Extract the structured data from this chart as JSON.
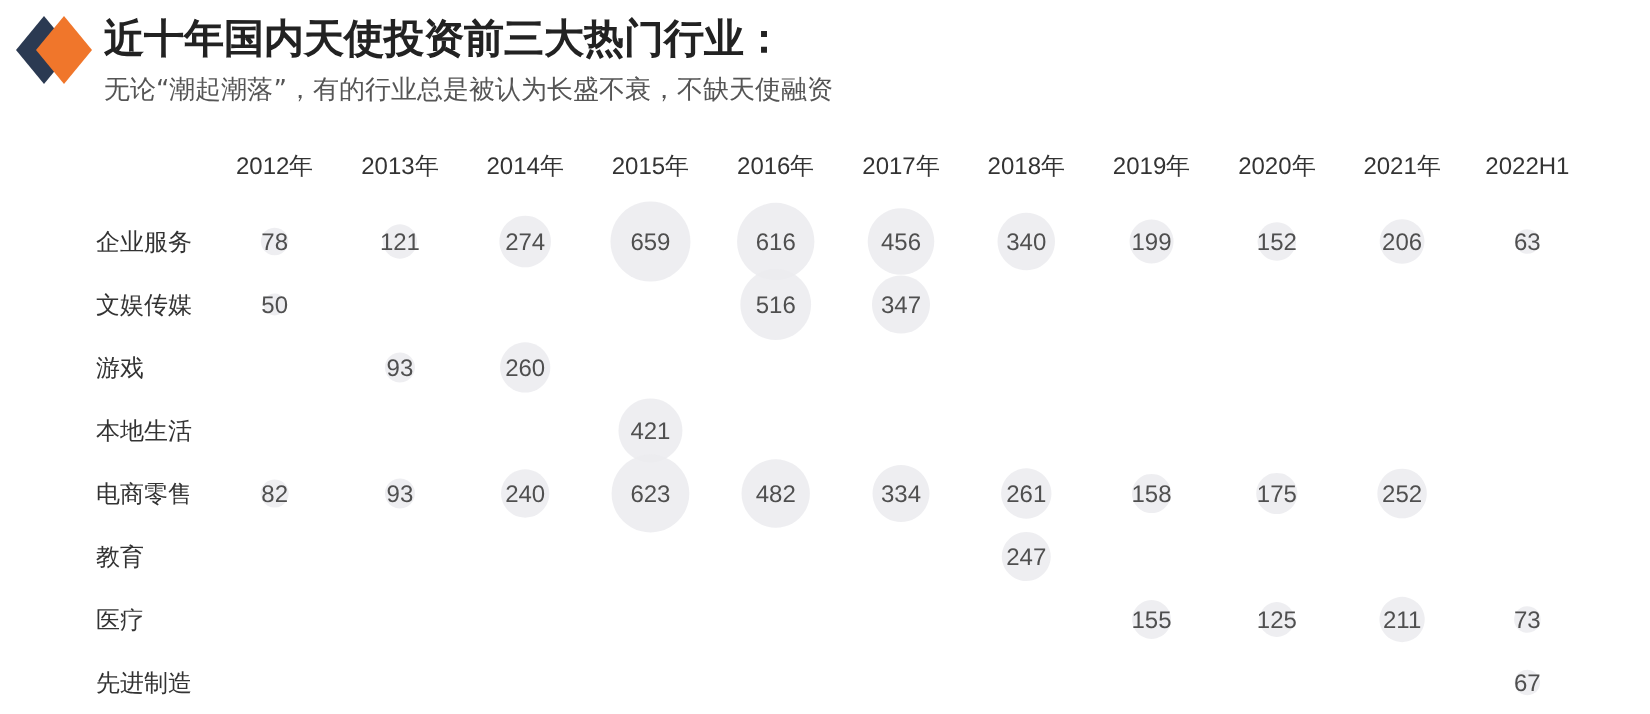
{
  "chart_data": {
    "type": "heatmap",
    "title": "近十年国内天使投资前三大热门行业：",
    "subtitle": "无论“潮起潮落”，有的行业总是被认为长盛不衰，不缺天使融资",
    "color": "#ebebee",
    "data_labels": true,
    "categories": [
      "2012年",
      "2013年",
      "2014年",
      "2015年",
      "2016年",
      "2017年",
      "2018年",
      "2019年",
      "2020年",
      "2021年",
      "2022H1"
    ],
    "y_categories": [
      "企业服务",
      "文娱传媒",
      "游戏",
      "本地生活",
      "电商零售",
      "教育",
      "医疗",
      "先进制造"
    ],
    "cells": [
      [
        78,
        121,
        274,
        659,
        616,
        456,
        340,
        199,
        152,
        206,
        63
      ],
      [
        50,
        null,
        null,
        null,
        516,
        347,
        null,
        null,
        null,
        null,
        null
      ],
      [
        null,
        93,
        260,
        null,
        null,
        null,
        null,
        null,
        null,
        null,
        null
      ],
      [
        null,
        null,
        null,
        421,
        null,
        null,
        null,
        null,
        null,
        null,
        null
      ],
      [
        82,
        93,
        240,
        623,
        482,
        334,
        261,
        158,
        175,
        252,
        null
      ],
      [
        null,
        null,
        null,
        null,
        null,
        null,
        247,
        null,
        null,
        null,
        null
      ],
      [
        null,
        null,
        null,
        null,
        null,
        null,
        null,
        155,
        125,
        211,
        73
      ],
      [
        null,
        null,
        null,
        null,
        null,
        null,
        null,
        null,
        null,
        null,
        67
      ]
    ]
  }
}
